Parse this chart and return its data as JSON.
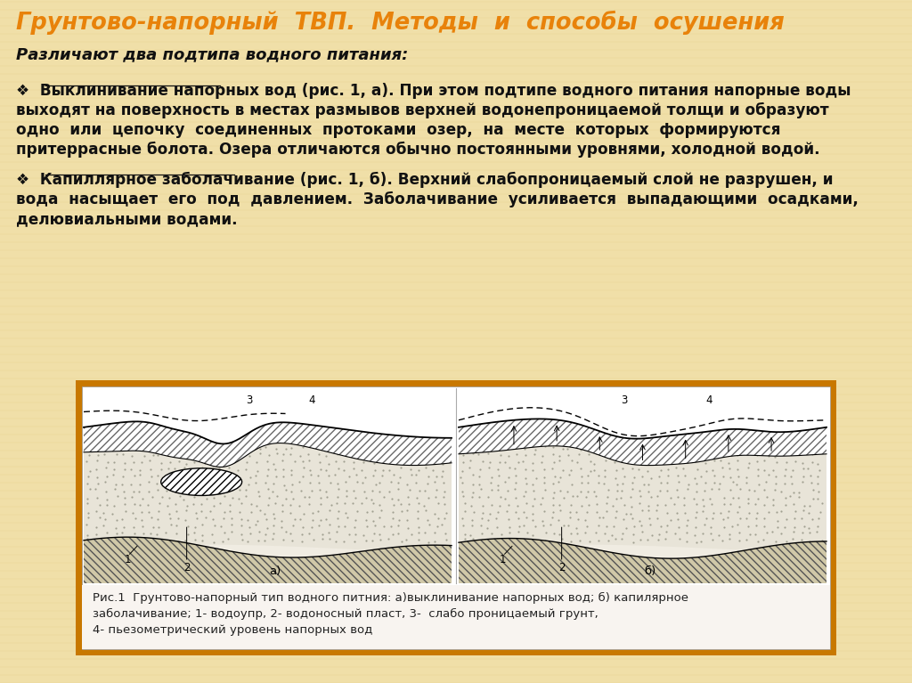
{
  "title": "Грунтово-напорный  ТВП.  Методы  и  способы  осушения",
  "title_color": "#E8820A",
  "subtitle": "Различают два подтипа водного питания:",
  "bg_color": "#F0DFA8",
  "text_color": "#111111",
  "bullet1_label": "Выклинивание напорных вод",
  "bullet1_line1": "❖  Выклинивание напорных вод (рис. 1, а). При этом подтипе водного питания напорные воды",
  "bullet1_line2": "выходят на поверхность в местах размывов верхней водонепроницаемой толщи и образуют",
  "bullet1_line3": "одно  или  цепочку  соединенных  протоками  озер,  на  месте  которых  формируются",
  "bullet1_line4": "притеррасные болота. Озера отличаются обычно постоянными уровнями, холодной водой.",
  "bullet2_label": "Капиллярное заболачивание",
  "bullet2_line1": "❖  Капиллярное заболачивание (рис. 1, б). Верхний слабопроницаемый слой не разрушен, и",
  "bullet2_line2": "вода  насыщает  его  под  давлением.  Заболачивание  усиливается  выпадающими  осадками,",
  "bullet2_line3": "делювиальными водами.",
  "fig_caption_line1": "Рис.1  Грунтово-напорный тип водного питния: а)выклинивание напорных вод; б) капилярное",
  "fig_caption_line2": "заболачивание; 1- водоупр, 2- водоносный пласт, 3-  слабо проницаемый грунт,",
  "fig_caption_line3": "4- пьезометрический уровень напорных вод",
  "frame_color": "#C87800",
  "frame_inner_color": "#FFFFFF"
}
